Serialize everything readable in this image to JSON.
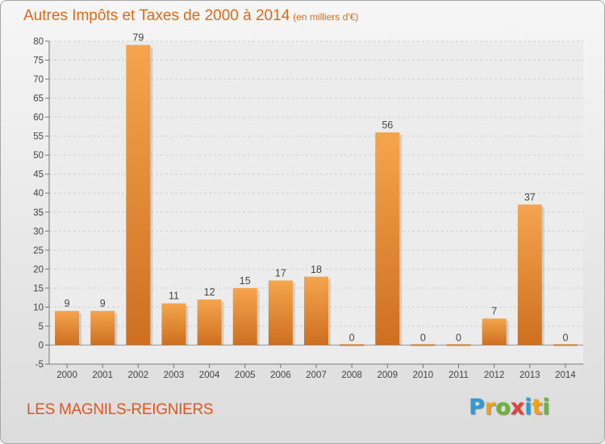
{
  "header": {
    "title": "Autres Impôts et Taxes de 2000 à 2014",
    "subtitle": "(en milliers d'€)"
  },
  "footer": {
    "commune": "LES MAGNILS-REIGNIERS",
    "logo_letters": [
      "P",
      "r",
      "o",
      "x",
      "i",
      "t",
      "i"
    ],
    "logo_colors": [
      "#2f9ad6",
      "#f1a21a",
      "#6ab63a",
      "#e2433a",
      "#2f9ad6",
      "#f1a21a",
      "#6ab63a"
    ]
  },
  "colors": {
    "bar_top": "#f5a54e",
    "bar_bottom": "#cd6f1f",
    "title": "#e06a18",
    "grid": "#cfcfcf"
  },
  "chart_data": {
    "type": "bar",
    "categories": [
      "2000",
      "2001",
      "2002",
      "2003",
      "2004",
      "2005",
      "2006",
      "2007",
      "2008",
      "2009",
      "2010",
      "2011",
      "2012",
      "2013",
      "2014"
    ],
    "values": [
      9,
      9,
      79,
      11,
      12,
      15,
      17,
      18,
      0,
      56,
      0,
      0,
      7,
      37,
      0
    ],
    "data_labels": [
      "9",
      "9",
      "79",
      "11",
      "12",
      "15",
      "17",
      "18",
      "0",
      "56",
      "0",
      "0",
      "7",
      "37",
      "0"
    ],
    "y_ticks": [
      "-5",
      "0",
      "5",
      "10",
      "15",
      "20",
      "25",
      "30",
      "35",
      "40",
      "45",
      "50",
      "55",
      "60",
      "65",
      "70",
      "75",
      "80"
    ],
    "ylim": [
      -5,
      80
    ],
    "grid": true,
    "legend": "none"
  }
}
